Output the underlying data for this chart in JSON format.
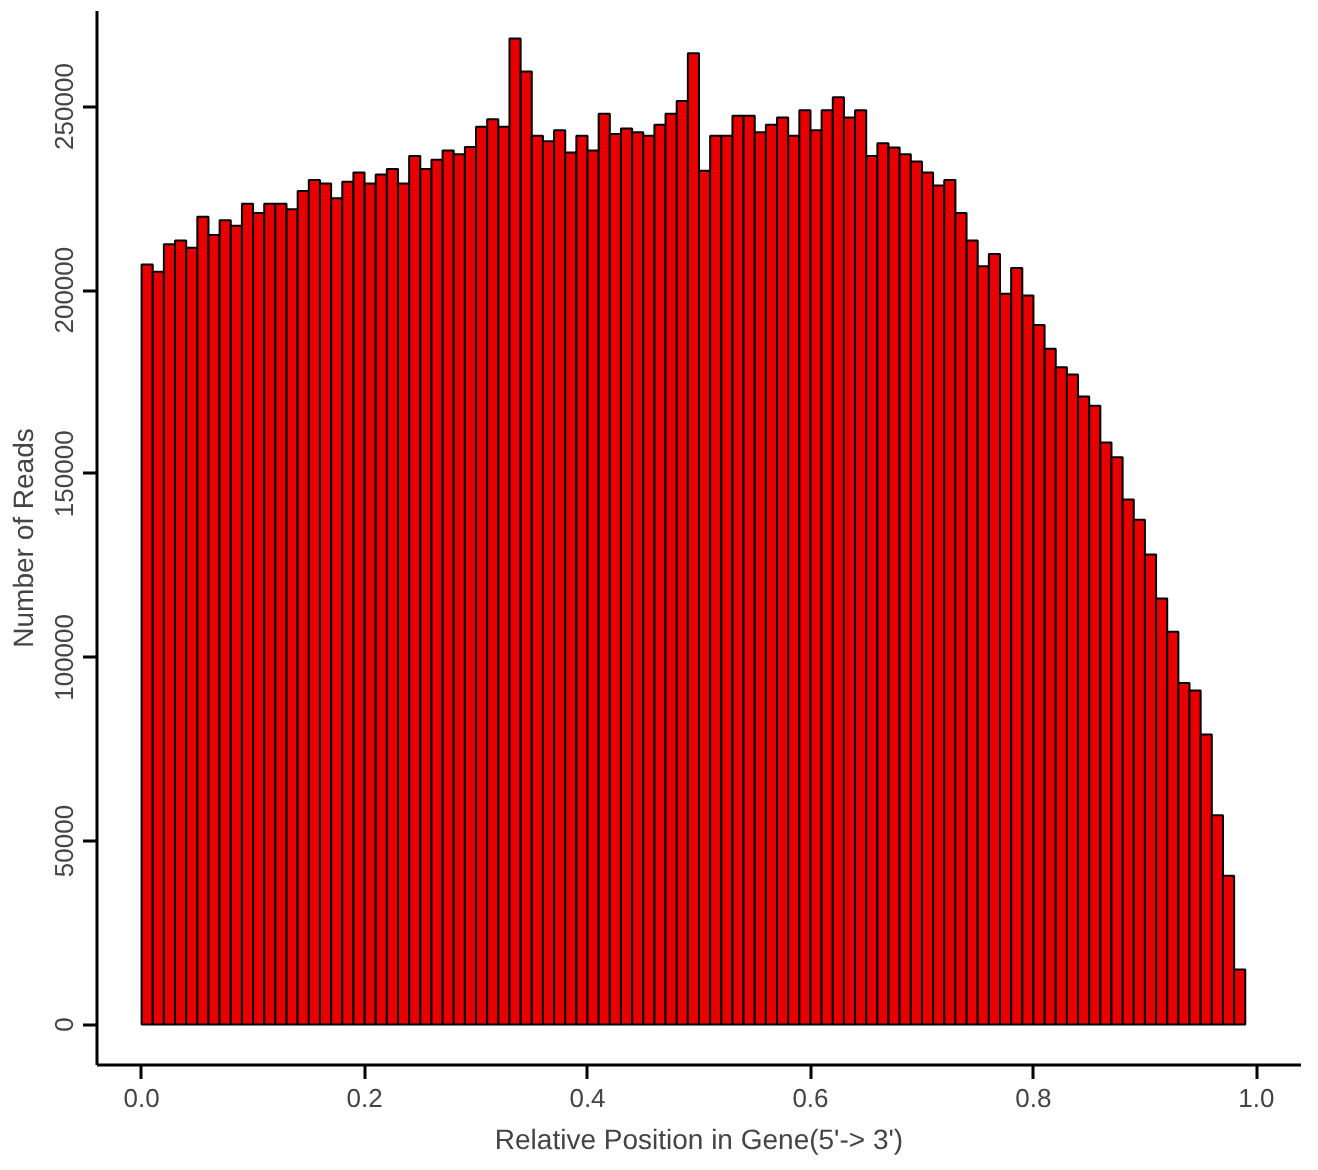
{
  "chart_data": {
    "type": "histogram",
    "xlabel": "Relative Position in Gene(5'-> 3')",
    "ylabel": "Number of Reads",
    "color": "#e80000",
    "bins": [
      0,
      0.01,
      0.02,
      0.03,
      0.04,
      0.05,
      0.06,
      0.07,
      0.08,
      0.09,
      0.1,
      0.11,
      0.12,
      0.13,
      0.14,
      0.15,
      0.16,
      0.17,
      0.18,
      0.19,
      0.2,
      0.21,
      0.22,
      0.23,
      0.24,
      0.25,
      0.26,
      0.27,
      0.28,
      0.29,
      0.3,
      0.31,
      0.32,
      0.33,
      0.34,
      0.35,
      0.36,
      0.37,
      0.38,
      0.39,
      0.4,
      0.41,
      0.42,
      0.43,
      0.44,
      0.45,
      0.46,
      0.47,
      0.48,
      0.49,
      0.5,
      0.51,
      0.52,
      0.53,
      0.54,
      0.55,
      0.56,
      0.57,
      0.58,
      0.59,
      0.6,
      0.61,
      0.62,
      0.63,
      0.64,
      0.65,
      0.66,
      0.67,
      0.68,
      0.69,
      0.7,
      0.71,
      0.72,
      0.73,
      0.74,
      0.75,
      0.76,
      0.77,
      0.78,
      0.79,
      0.8,
      0.81,
      0.82,
      0.83,
      0.84,
      0.85,
      0.86,
      0.87,
      0.88,
      0.89,
      0.9,
      0.91,
      0.92,
      0.93,
      0.94,
      0.95,
      0.96,
      0.97,
      0.98,
      0.99
    ],
    "values": [
      207000,
      205000,
      212500,
      213500,
      211500,
      220000,
      215000,
      219000,
      217500,
      223500,
      221000,
      223500,
      223500,
      222000,
      227000,
      230000,
      229000,
      225000,
      229500,
      232000,
      229000,
      231500,
      233000,
      229000,
      236500,
      233000,
      235500,
      238000,
      237000,
      239000,
      244500,
      246500,
      244500,
      268500,
      259500,
      242000,
      240500,
      243500,
      237500,
      242000,
      238000,
      248000,
      242500,
      244000,
      243000,
      242000,
      245000,
      248000,
      251500,
      264500,
      232500,
      242000,
      242000,
      247500,
      247500,
      243000,
      245000,
      247000,
      242000,
      249000,
      243500,
      249000,
      252500,
      247000,
      249000,
      236500,
      240000,
      238800,
      237000,
      235000,
      232000,
      228500,
      230000,
      221000,
      213500,
      206500,
      209800,
      199000,
      206000,
      198500,
      190500,
      184000,
      179000,
      177000,
      171000,
      168500,
      158500,
      154500,
      143000,
      137500,
      128000,
      116000,
      107000,
      93000,
      91000,
      79000,
      57000,
      40500,
      15000
    ],
    "xlim": [
      -0.04,
      1.04
    ],
    "ylim": [
      -11000,
      276000
    ],
    "xticks": [
      {
        "value": 0,
        "label": "0.0"
      },
      0.2,
      0.4,
      0.6,
      0.8,
      {
        "value": 1,
        "label": "1.0"
      }
    ],
    "yticks": [
      0,
      50000,
      100000,
      150000,
      200000,
      250000
    ],
    "grid": false
  }
}
